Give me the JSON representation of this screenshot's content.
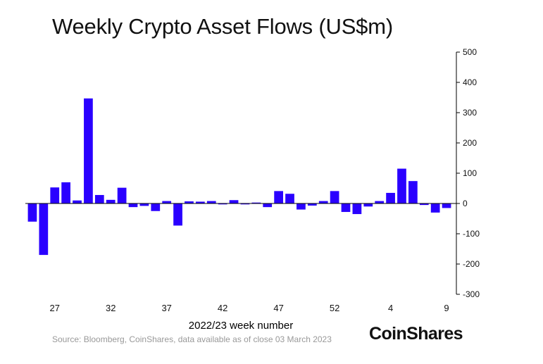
{
  "chart_data": {
    "type": "bar",
    "title": "Weekly Crypto Asset Flows (US$m)",
    "xlabel": "2022/23 week number",
    "ylabel": "",
    "ylim": [
      -300,
      500
    ],
    "yticks": [
      500,
      400,
      300,
      200,
      100,
      0,
      -100,
      -200,
      -300
    ],
    "y_axis_side": "right",
    "bar_color": "#2a00ff",
    "x_tick_labels": [
      {
        "label": "27",
        "index": 2
      },
      {
        "label": "32",
        "index": 7
      },
      {
        "label": "37",
        "index": 12
      },
      {
        "label": "42",
        "index": 17
      },
      {
        "label": "47",
        "index": 22
      },
      {
        "label": "52",
        "index": 27
      },
      {
        "label": "4",
        "index": 32
      },
      {
        "label": "9",
        "index": 37
      }
    ],
    "values": [
      -60,
      -170,
      53,
      70,
      10,
      347,
      28,
      12,
      52,
      -12,
      -8,
      -25,
      8,
      -73,
      7,
      6,
      8,
      -3,
      11,
      -3,
      3,
      -12,
      41,
      32,
      -20,
      -7,
      8,
      41,
      -28,
      -35,
      -10,
      8,
      35,
      115,
      74,
      -5,
      -30,
      -15
    ]
  },
  "source": "Source: Bloomberg, CoinShares, data available as of close 03 March 2023",
  "brand": "CoinShares"
}
